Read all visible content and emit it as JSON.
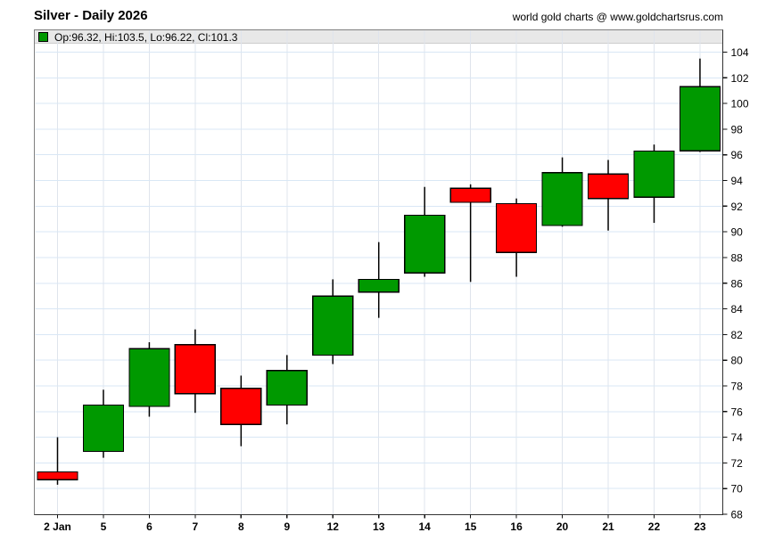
{
  "header": {
    "title": "Silver - Daily 2026",
    "source": "world gold charts @ www.goldchartsrus.com"
  },
  "legend": {
    "text": "Op:96.32, Hi:103.5, Lo:96.22, Cl:101.3"
  },
  "colors": {
    "up": "#009900",
    "down": "#ff0000",
    "candle_outline": "#000000",
    "grid_horizontal": "#d9e7f5",
    "grid_vertical": "#dfe4ec",
    "legend_bar_bg": "#e8e8e8",
    "frame": "#808080",
    "axis": "#333333"
  },
  "chart_data": {
    "type": "candlestick",
    "title": "Silver - Daily 2026",
    "xlabel": "",
    "ylabel": "",
    "axis_side": "right",
    "legend_position": "top-left-bar",
    "grid": true,
    "ylim": [
      68,
      104
    ],
    "ytick_step": 2,
    "y_tick_labels": [
      68,
      70,
      72,
      74,
      76,
      78,
      80,
      82,
      84,
      86,
      88,
      90,
      92,
      94,
      96,
      98,
      100,
      102,
      104
    ],
    "categories": [
      "2 Jan",
      "5",
      "6",
      "7",
      "8",
      "9",
      "12",
      "13",
      "14",
      "15",
      "16",
      "20",
      "21",
      "22",
      "23"
    ],
    "ohlc": [
      {
        "date": "2 Jan",
        "open": 71.3,
        "high": 74.0,
        "low": 70.3,
        "close": 70.7
      },
      {
        "date": "5",
        "open": 72.9,
        "high": 77.7,
        "low": 72.4,
        "close": 76.5
      },
      {
        "date": "6",
        "open": 76.4,
        "high": 81.4,
        "low": 75.6,
        "close": 80.9
      },
      {
        "date": "7",
        "open": 81.2,
        "high": 82.4,
        "low": 75.9,
        "close": 77.4
      },
      {
        "date": "8",
        "open": 77.8,
        "high": 78.8,
        "low": 73.3,
        "close": 75.0
      },
      {
        "date": "9",
        "open": 76.5,
        "high": 80.4,
        "low": 75.0,
        "close": 79.2
      },
      {
        "date": "12",
        "open": 80.4,
        "high": 86.3,
        "low": 79.7,
        "close": 85.0
      },
      {
        "date": "13",
        "open": 85.3,
        "high": 89.2,
        "low": 83.3,
        "close": 86.3
      },
      {
        "date": "14",
        "open": 86.8,
        "high": 93.5,
        "low": 86.5,
        "close": 91.3
      },
      {
        "date": "15",
        "open": 93.4,
        "high": 93.7,
        "low": 86.1,
        "close": 92.3
      },
      {
        "date": "16",
        "open": 92.2,
        "high": 92.6,
        "low": 86.5,
        "close": 88.4
      },
      {
        "date": "20",
        "open": 90.5,
        "high": 95.8,
        "low": 90.4,
        "close": 94.6
      },
      {
        "date": "21",
        "open": 94.5,
        "high": 95.6,
        "low": 90.1,
        "close": 92.6
      },
      {
        "date": "22",
        "open": 92.7,
        "high": 96.8,
        "low": 90.7,
        "close": 96.3
      },
      {
        "date": "23",
        "open": 96.32,
        "high": 103.5,
        "low": 96.22,
        "close": 101.3
      }
    ]
  }
}
